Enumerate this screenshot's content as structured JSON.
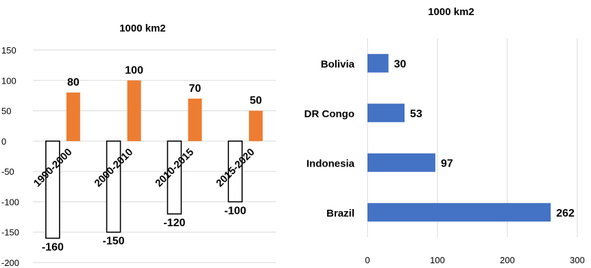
{
  "chart_data": [
    {
      "type": "bar",
      "title": "1000 km2",
      "categories": [
        "1990-2000",
        "2000-2010",
        "2010-2015",
        "2015-2020"
      ],
      "series": [
        {
          "values": [
            -160,
            -150,
            -120,
            -100
          ],
          "color": "#ffffff",
          "stroke": "#000000"
        },
        {
          "values": [
            80,
            100,
            70,
            50
          ],
          "color": "#ed7d31"
        }
      ],
      "ylim": [
        -200,
        150
      ],
      "yticks": [
        -200,
        -150,
        -100,
        -50,
        0,
        50,
        100,
        150
      ],
      "grid": true,
      "xlabel": "",
      "ylabel": ""
    },
    {
      "type": "bar",
      "orientation": "horizontal",
      "title": "1000 km2",
      "categories": [
        "Bolivia",
        "DR Congo",
        "Indonesia",
        "Brazil"
      ],
      "values": [
        30,
        53,
        97,
        262
      ],
      "color": "#4472c4",
      "xlim": [
        0,
        300
      ],
      "xticks": [
        0,
        100,
        200,
        300
      ],
      "grid": true,
      "xlabel": "",
      "ylabel": ""
    }
  ]
}
